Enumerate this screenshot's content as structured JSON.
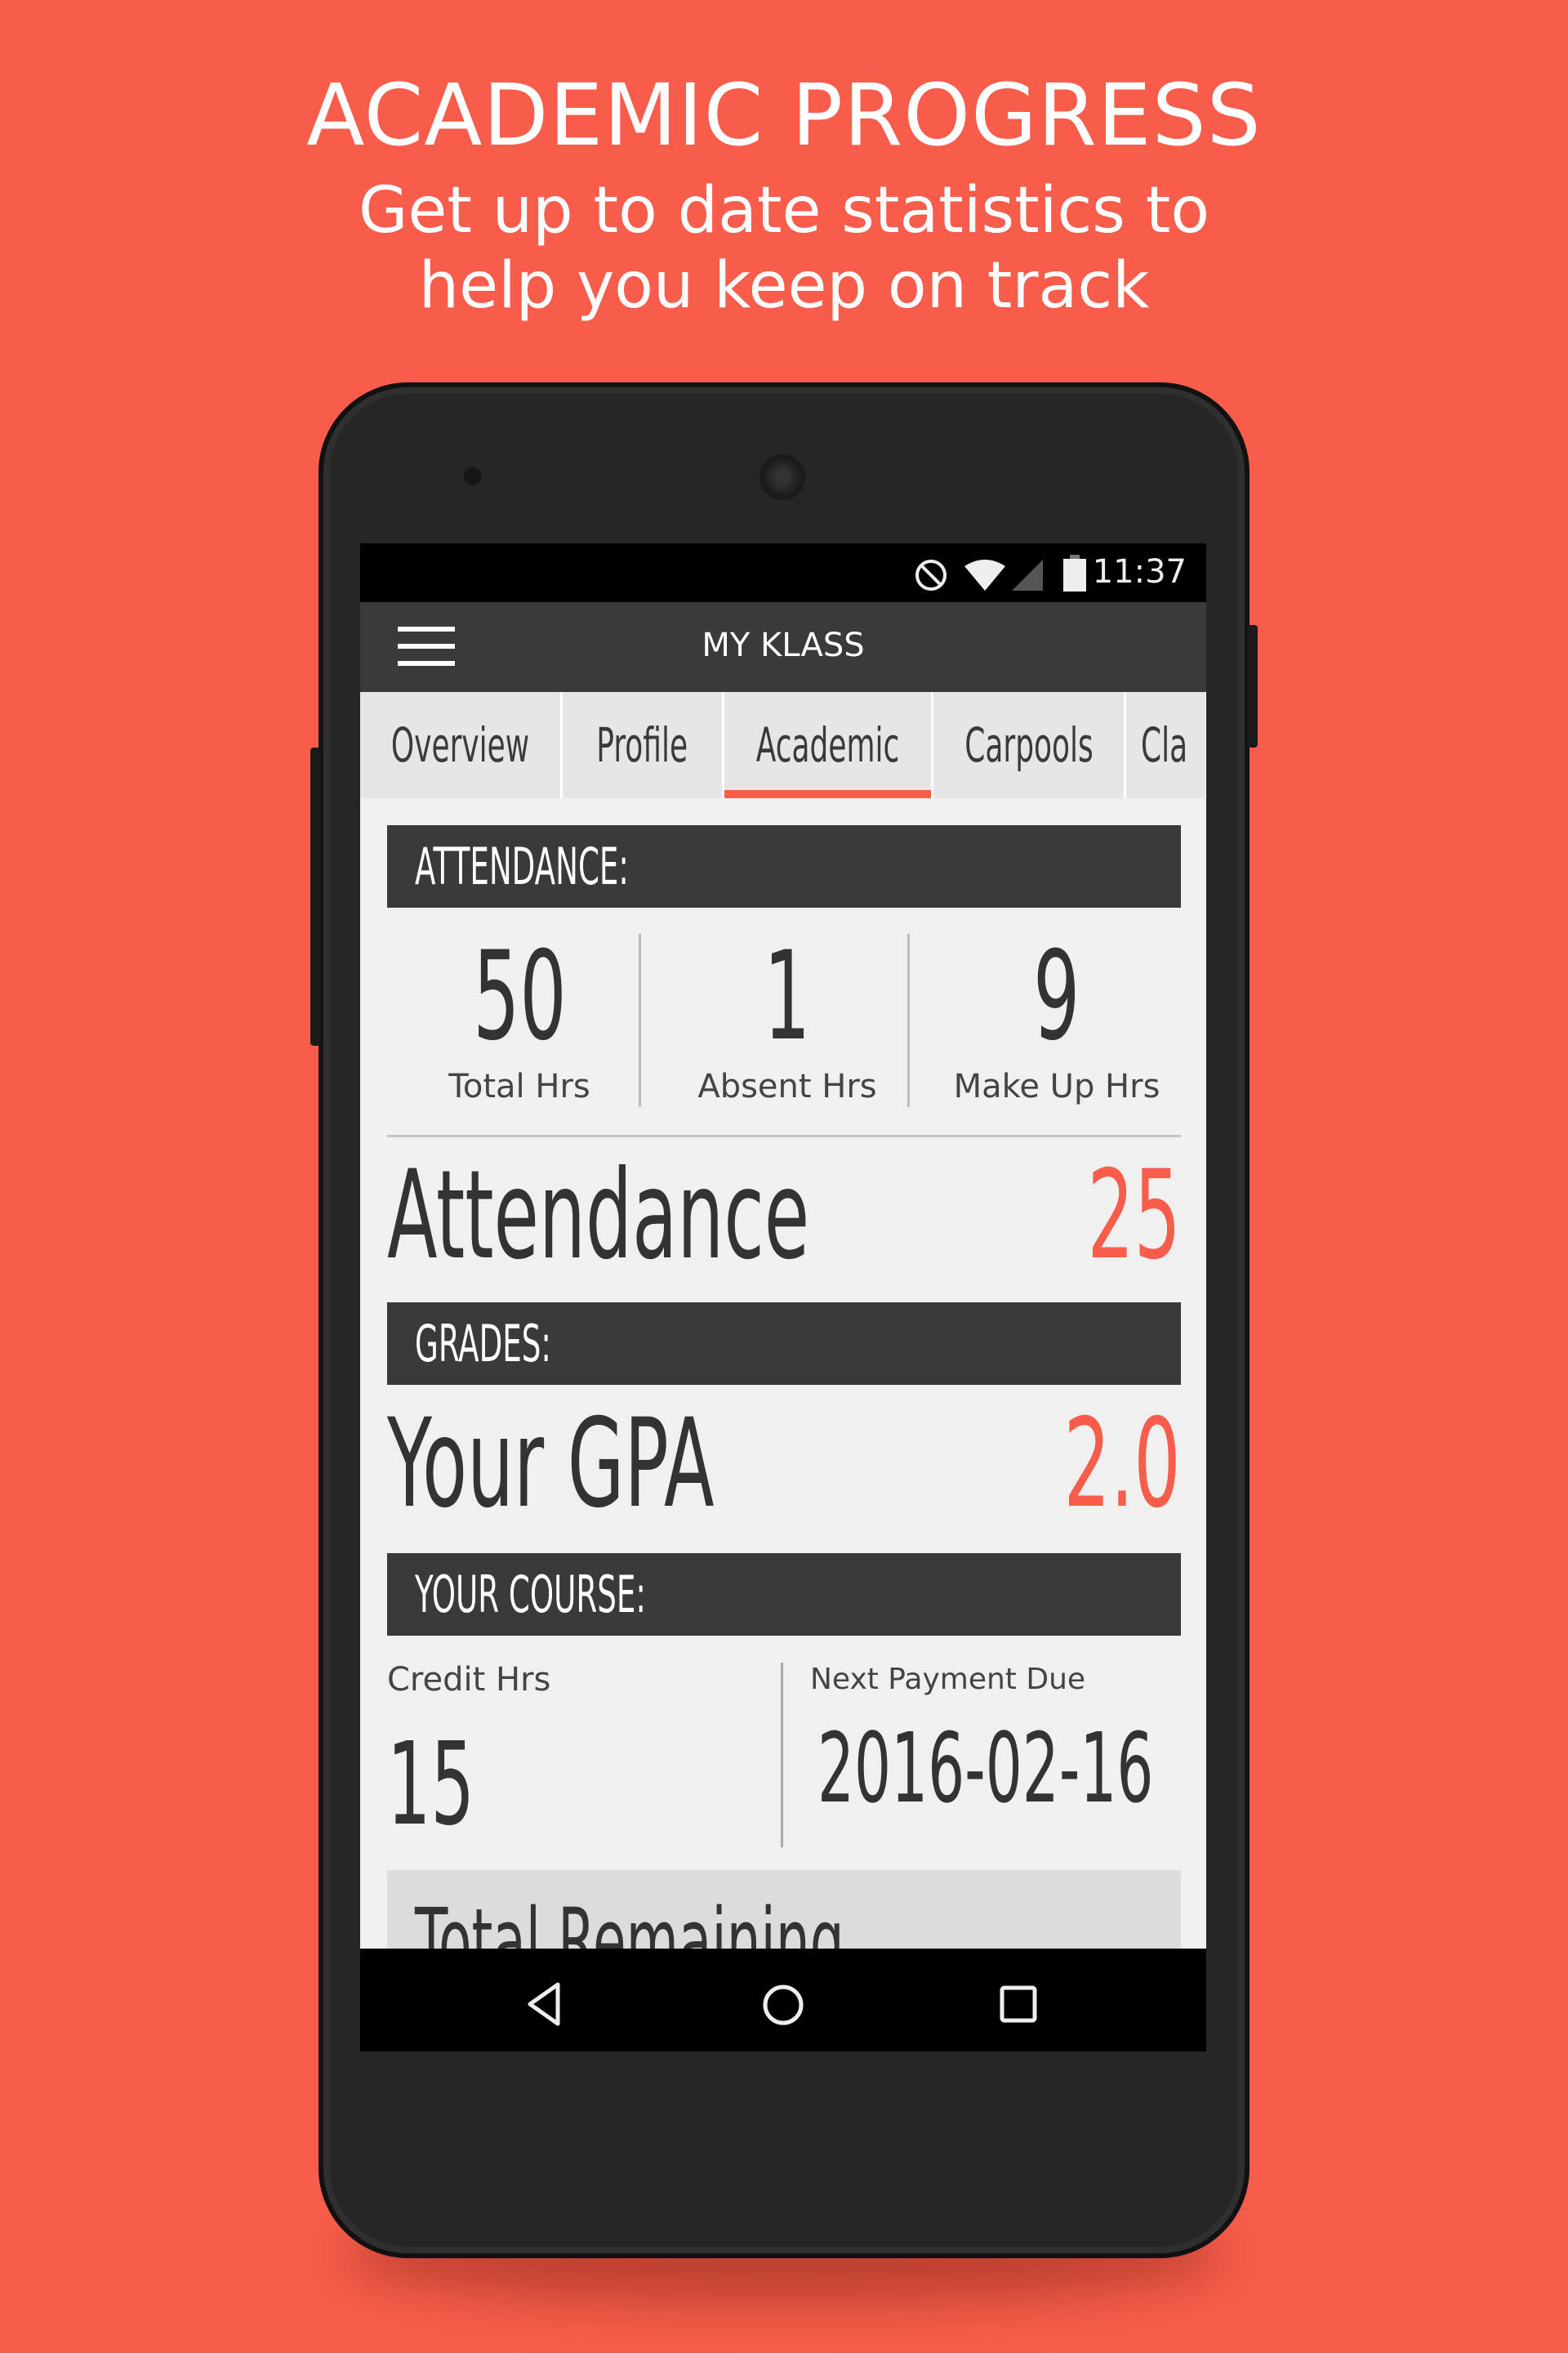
{
  "hero": {
    "title": "ACADEMIC PROGRESS",
    "subtitle_line1": "Get up to date statistics to",
    "subtitle_line2": "help you keep on track"
  },
  "colors": {
    "background": "#F75D4A",
    "accent": "#F75D4A",
    "header": "#3a3a3a"
  },
  "status_bar": {
    "time": "11:37",
    "icons": [
      "do-not-disturb-icon",
      "wifi-icon",
      "signal-icon",
      "battery-icon"
    ]
  },
  "app_bar": {
    "title": "MY KLASS",
    "menu_icon": "hamburger-menu-icon"
  },
  "tabs": [
    {
      "label": "Overview",
      "active": false
    },
    {
      "label": "Profile",
      "active": false
    },
    {
      "label": "Academic",
      "active": true
    },
    {
      "label": "Carpools",
      "active": false
    },
    {
      "label": "Cla",
      "active": false
    }
  ],
  "attendance": {
    "header": "ATTENDANCE:",
    "stats": [
      {
        "value": "50",
        "label": "Total Hrs"
      },
      {
        "value": "1",
        "label": "Absent Hrs"
      },
      {
        "value": "9",
        "label": "Make Up Hrs"
      }
    ],
    "summary_label": "Attendance",
    "summary_value": "25"
  },
  "grades": {
    "header": "GRADES:",
    "gpa_label": "Your GPA",
    "gpa_value": "2.0"
  },
  "course": {
    "header": "YOUR COURSE:",
    "credit_label": "Credit Hrs",
    "credit_value": "15",
    "payment_label": "Next Payment Due",
    "payment_value": "2016-02-16",
    "remaining_label": "Total Remaining"
  },
  "nav_bar": {
    "icons": [
      "back-icon",
      "home-icon",
      "recents-icon"
    ]
  }
}
